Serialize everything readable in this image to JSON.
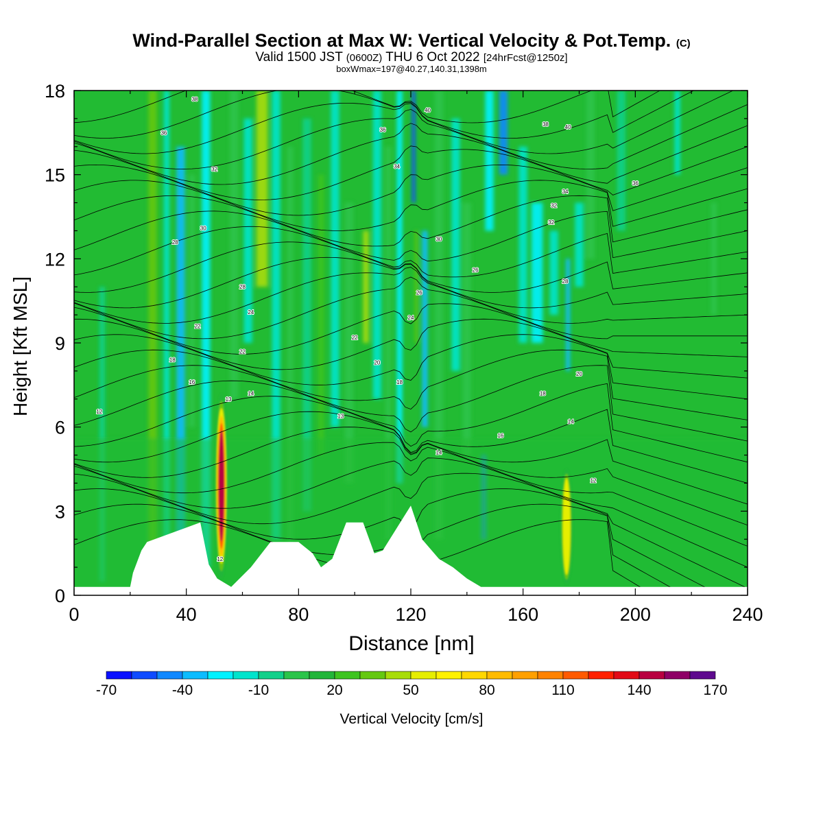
{
  "title": {
    "main": "Wind-Parallel Section at Max W: Vertical Velocity & Pot.Temp.",
    "copyright": "(C)",
    "valid_prefix": "Valid 1500 JST",
    "valid_utc": "(0600Z)",
    "valid_date": "THU 6 Oct 2022",
    "forecast": "[24hrFcst@1250z]",
    "box_info": "boxWmax=197@40.27,140.31,1398m"
  },
  "chart_data": {
    "type": "heatmap",
    "xlabel": "Distance [nm]",
    "ylabel": "Height [Kft MSL]",
    "xlim": [
      0,
      240
    ],
    "ylim": [
      0,
      18
    ],
    "x_ticks": [
      "0",
      "40",
      "80",
      "120",
      "160",
      "200",
      "240"
    ],
    "y_ticks": [
      "0",
      "3",
      "6",
      "9",
      "12",
      "15",
      "18"
    ],
    "background_color": "#22bb33",
    "colorbar": {
      "label": "Vertical Velocity [cm/s]",
      "tick_labels": [
        "-70",
        "-40",
        "-10",
        "20",
        "50",
        "80",
        "110",
        "140",
        "170"
      ],
      "levels": [
        -70,
        -60,
        -50,
        -40,
        -30,
        -20,
        -10,
        0,
        10,
        20,
        30,
        40,
        50,
        60,
        70,
        80,
        90,
        100,
        110,
        120,
        130,
        140,
        150,
        160,
        170
      ],
      "colors": [
        "#0a10ff",
        "#0f4bff",
        "#1088ff",
        "#0cbcff",
        "#00f2ff",
        "#00e4cc",
        "#12d08a",
        "#2bc44a",
        "#22b53a",
        "#3dc420",
        "#65c811",
        "#a8dc0a",
        "#e6ee00",
        "#fff100",
        "#ffd700",
        "#ffbb00",
        "#ffa000",
        "#ff8200",
        "#ff5a00",
        "#ff2000",
        "#e20a16",
        "#b80040",
        "#8e0065",
        "#5e0a8e"
      ]
    },
    "updraft_columns": [
      {
        "x": 52.5,
        "base_kft": 0.6,
        "top_kft": 7.2,
        "peak_cm_s": 197
      },
      {
        "x": 175.5,
        "base_kft": 0.4,
        "top_kft": 4.5,
        "peak_cm_s": 60
      }
    ],
    "theta_contour_labels": [
      "12",
      "13",
      "14",
      "16",
      "18",
      "20",
      "22",
      "24",
      "26",
      "28",
      "30",
      "32",
      "34",
      "36",
      "38",
      "40"
    ],
    "terrain_kft": [
      [
        0,
        0.3
      ],
      [
        20,
        0.3
      ],
      [
        21,
        0.8
      ],
      [
        24,
        1.6
      ],
      [
        26,
        1.9
      ],
      [
        45,
        2.6
      ],
      [
        48,
        1.1
      ],
      [
        51,
        0.6
      ],
      [
        56,
        0.3
      ],
      [
        63,
        1.0
      ],
      [
        70,
        1.9
      ],
      [
        80,
        1.9
      ],
      [
        85,
        1.5
      ],
      [
        88,
        1.0
      ],
      [
        92,
        1.3
      ],
      [
        97,
        2.6
      ],
      [
        103,
        2.6
      ],
      [
        107,
        1.5
      ],
      [
        110,
        1.6
      ],
      [
        120,
        3.2
      ],
      [
        124,
        2.0
      ],
      [
        130,
        1.3
      ],
      [
        135,
        1.0
      ],
      [
        140,
        0.6
      ],
      [
        145,
        0.3
      ],
      [
        240,
        0.3
      ]
    ]
  }
}
